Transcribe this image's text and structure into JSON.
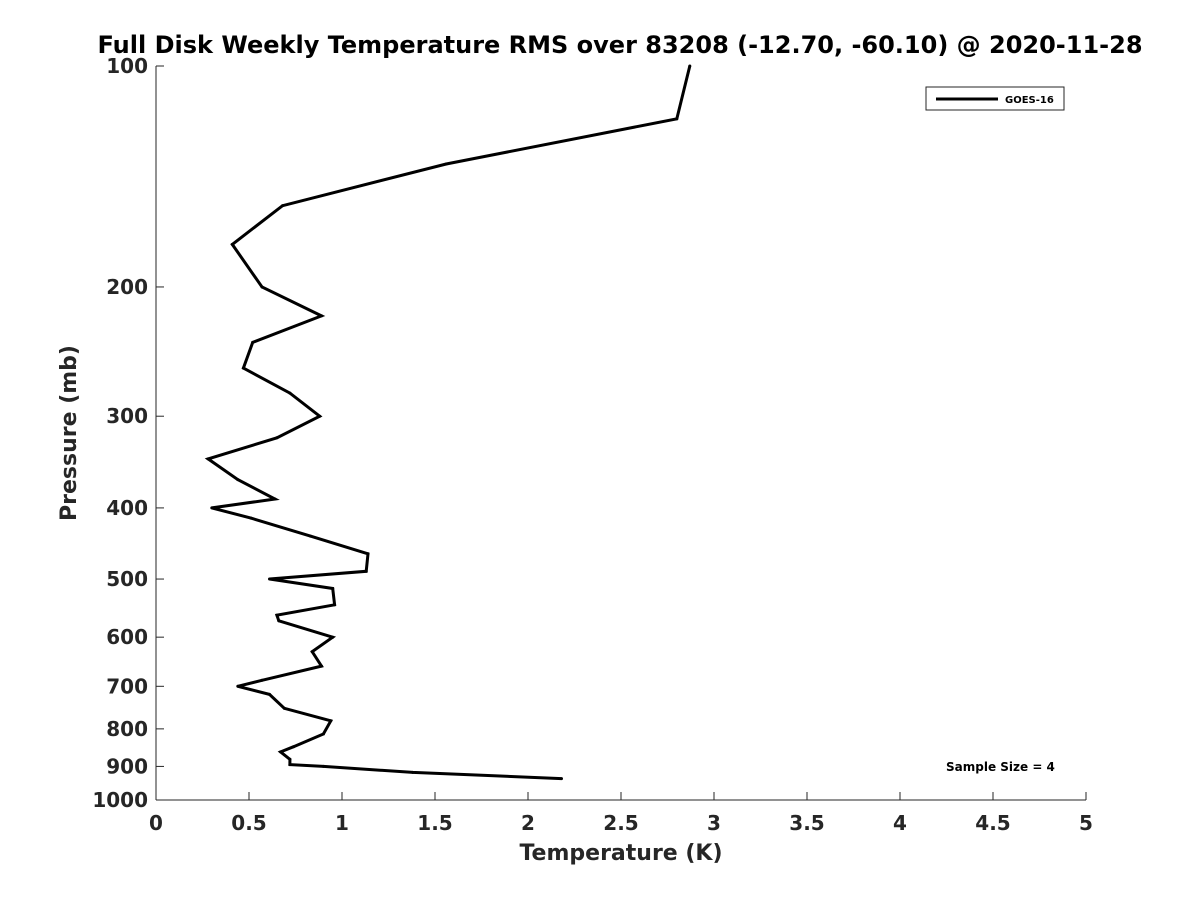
{
  "chart_data": {
    "type": "line",
    "title": "Full Disk Weekly Temperature RMS over 83208 (-12.70, -60.10) @ 2020-11-28",
    "xlabel": "Temperature (K)",
    "ylabel": "Pressure (mb)",
    "xlim": [
      0,
      5
    ],
    "ylim": [
      100,
      1000
    ],
    "y_scale": "log",
    "y_reversed": true,
    "x_ticks": [
      "0",
      "0.5",
      "1",
      "1.5",
      "2",
      "2.5",
      "3",
      "3.5",
      "4",
      "4.5",
      "5"
    ],
    "y_ticks": [
      "100",
      "200",
      "300",
      "400",
      "500",
      "600",
      "700",
      "800",
      "900",
      "1000"
    ],
    "grid": false,
    "legend_position": "top-right",
    "annotation": "Sample Size = 4",
    "series": [
      {
        "name": "GOES-16",
        "color": "#000000",
        "points": [
          [
            2.87,
            100
          ],
          [
            2.8,
            118
          ],
          [
            1.56,
            136
          ],
          [
            0.68,
            155
          ],
          [
            0.41,
            175
          ],
          [
            0.57,
            200
          ],
          [
            0.89,
            219
          ],
          [
            0.52,
            238
          ],
          [
            0.47,
            258
          ],
          [
            0.72,
            279
          ],
          [
            0.88,
            300
          ],
          [
            0.65,
            321
          ],
          [
            0.28,
            343
          ],
          [
            0.44,
            366
          ],
          [
            0.64,
            389
          ],
          [
            0.3,
            400
          ],
          [
            0.51,
            413
          ],
          [
            0.83,
            437
          ],
          [
            1.14,
            462
          ],
          [
            1.13,
            488
          ],
          [
            0.61,
            500
          ],
          [
            0.95,
            515
          ],
          [
            0.96,
            542
          ],
          [
            0.65,
            560
          ],
          [
            0.66,
            570
          ],
          [
            0.95,
            600
          ],
          [
            0.84,
            628
          ],
          [
            0.89,
            657
          ],
          [
            0.57,
            687
          ],
          [
            0.44,
            700
          ],
          [
            0.61,
            718
          ],
          [
            0.69,
            750
          ],
          [
            0.94,
            780
          ],
          [
            0.9,
            813
          ],
          [
            0.74,
            846
          ],
          [
            0.67,
            860
          ],
          [
            0.72,
            880
          ],
          [
            0.72,
            895
          ],
          [
            0.9,
            900
          ],
          [
            1.38,
            917
          ],
          [
            2.18,
            935
          ]
        ]
      }
    ]
  }
}
